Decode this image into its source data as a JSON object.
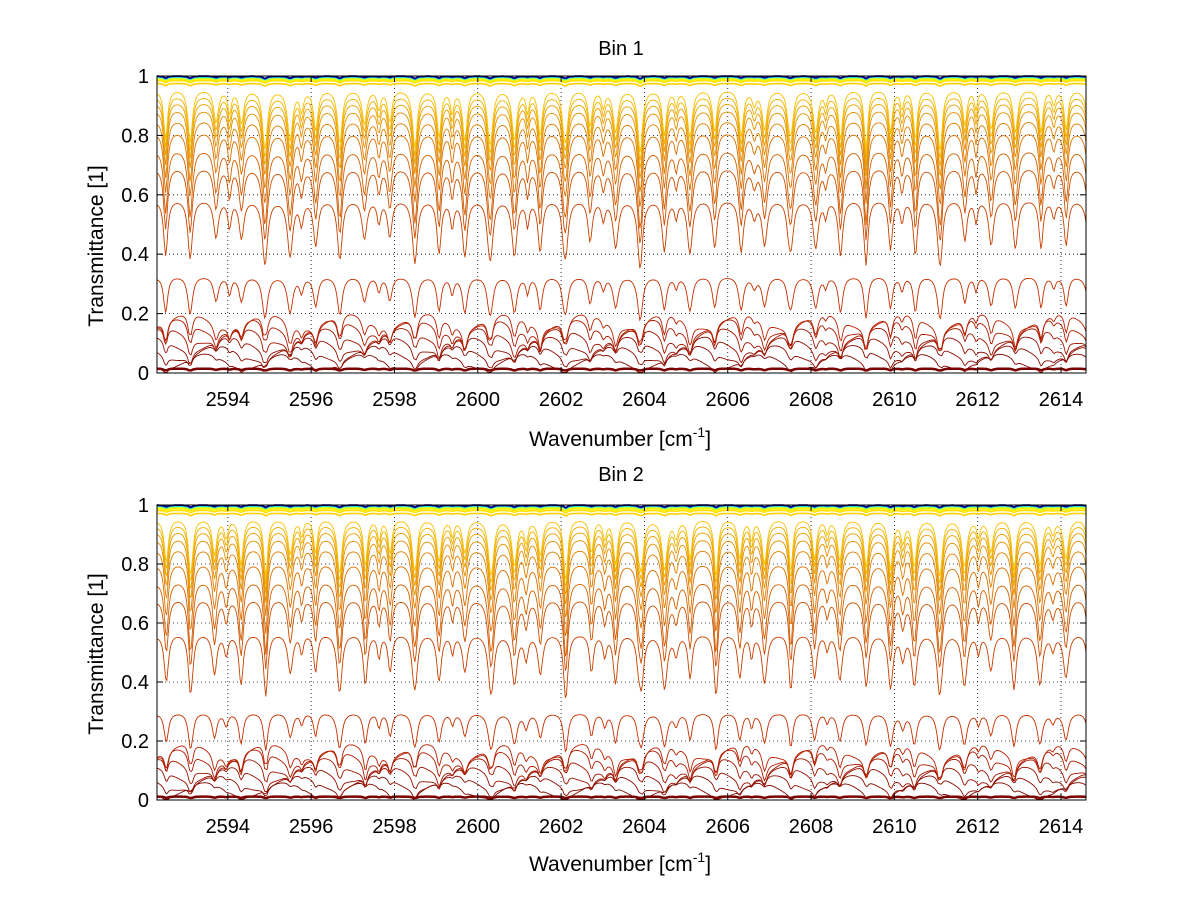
{
  "figure": {
    "background": "#ffffff"
  },
  "chart_data": [
    {
      "type": "line",
      "title": "Bin 1",
      "xlabel": "Wavenumber [cm",
      "xlabel_sup": "-1",
      "xlabel_end": "]",
      "ylabel": "Transmittance [1]",
      "xlim": [
        2592.3,
        2614.6
      ],
      "ylim": [
        0,
        1
      ],
      "xticks": [
        2594,
        2596,
        2598,
        2600,
        2602,
        2604,
        2606,
        2608,
        2610,
        2612,
        2614
      ],
      "xtick_labels": [
        "2594",
        "2596",
        "2598",
        "2600",
        "2602",
        "2604",
        "2606",
        "2608",
        "2610",
        "2612",
        "2614"
      ],
      "yticks": [
        0,
        0.2,
        0.4,
        0.6,
        0.8,
        1
      ],
      "ytick_labels": [
        "0",
        "0.2",
        "0.4",
        "0.6",
        "0.8",
        "1"
      ],
      "grid": "dotted",
      "series_baselines": [
        1.0,
        1.0,
        1.0,
        0.999,
        0.998,
        0.997,
        0.995,
        0.993,
        0.99,
        0.985,
        0.975,
        0.96,
        0.94,
        0.92,
        0.895,
        0.86,
        0.82,
        0.76,
        0.7,
        0.59,
        0.33,
        0.18,
        0.16,
        0.13,
        0.1,
        0.07,
        0.04,
        0.015
      ],
      "series_colors": [
        "#00007f",
        "#0000cc",
        "#0050ff",
        "#00a0ff",
        "#10d0e0",
        "#50ffb0",
        "#a0ff60",
        "#e0ff10",
        "#fff000",
        "#ffe000",
        "#ffd000",
        "#f8c000",
        "#f0b000",
        "#eaa000",
        "#e49000",
        "#de8000",
        "#d87000",
        "#d26000",
        "#cc5000",
        "#c84000",
        "#c43000",
        "#b82000",
        "#ac1a00",
        "#a01500",
        "#941000",
        "#880c00",
        "#800800",
        "#7a0000"
      ]
    },
    {
      "type": "line",
      "title": "Bin 2",
      "xlabel": "Wavenumber [cm",
      "xlabel_sup": "-1",
      "xlabel_end": "]",
      "ylabel": "Transmittance [1]",
      "xlim": [
        2592.3,
        2614.6
      ],
      "ylim": [
        0,
        1
      ],
      "xticks": [
        2594,
        2596,
        2598,
        2600,
        2602,
        2604,
        2606,
        2608,
        2610,
        2612,
        2614
      ],
      "xtick_labels": [
        "2594",
        "2596",
        "2598",
        "2600",
        "2602",
        "2604",
        "2606",
        "2608",
        "2610",
        "2612",
        "2614"
      ],
      "yticks": [
        0,
        0.2,
        0.4,
        0.6,
        0.8,
        1
      ],
      "ytick_labels": [
        "0",
        "0.2",
        "0.4",
        "0.6",
        "0.8",
        "1"
      ],
      "grid": "dotted",
      "series_baselines": [
        1.0,
        1.0,
        1.0,
        0.999,
        0.998,
        0.997,
        0.995,
        0.992,
        0.988,
        0.982,
        0.972,
        0.958,
        0.94,
        0.92,
        0.895,
        0.86,
        0.81,
        0.75,
        0.69,
        0.57,
        0.3,
        0.17,
        0.15,
        0.12,
        0.09,
        0.06,
        0.035,
        0.012
      ],
      "series_colors": [
        "#00007f",
        "#0000cc",
        "#0050ff",
        "#00a0ff",
        "#10d0e0",
        "#50ffb0",
        "#a0ff60",
        "#e0ff10",
        "#fff000",
        "#ffe000",
        "#ffd000",
        "#f8c000",
        "#f0b000",
        "#eaa000",
        "#e49000",
        "#de8000",
        "#d87000",
        "#d26000",
        "#cc5000",
        "#c84000",
        "#c43000",
        "#b82000",
        "#ac1a00",
        "#a01500",
        "#941000",
        "#880c00",
        "#800800",
        "#7a0000"
      ]
    }
  ]
}
